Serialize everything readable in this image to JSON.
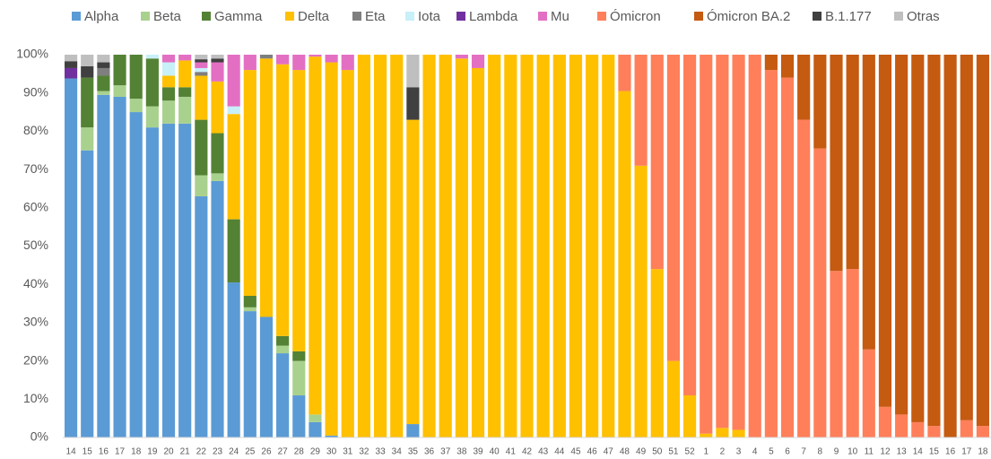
{
  "chart_data": {
    "type": "stacked_bar",
    "categories": [
      "14",
      "15",
      "16",
      "17",
      "18",
      "19",
      "20",
      "21",
      "22",
      "23",
      "24",
      "25",
      "26",
      "27",
      "28",
      "29",
      "30",
      "31",
      "32",
      "33",
      "34",
      "35",
      "36",
      "37",
      "38",
      "39",
      "40",
      "41",
      "42",
      "43",
      "44",
      "45",
      "46",
      "47",
      "48",
      "49",
      "50",
      "51",
      "52",
      "1",
      "2",
      "3",
      "4",
      "5",
      "6",
      "7",
      "8",
      "9",
      "10",
      "11",
      "12",
      "13",
      "14",
      "15",
      "16",
      "17",
      "18"
    ],
    "series": [
      {
        "name": "Alpha",
        "color": "#5b9bd5",
        "values": [
          93.8,
          75,
          89.5,
          89,
          85,
          81,
          82,
          82,
          63,
          67,
          40.5,
          33,
          31.5,
          22,
          11,
          4,
          0.5,
          0,
          0,
          0,
          0,
          3.5,
          0,
          0,
          0,
          0,
          0,
          0,
          0,
          0,
          0,
          0,
          0,
          0,
          0,
          0,
          0,
          0,
          0,
          0,
          0,
          0,
          0,
          0,
          0,
          0,
          0,
          0,
          0,
          0,
          0,
          0,
          0,
          0,
          0,
          0,
          0
        ]
      },
      {
        "name": "Beta",
        "color": "#a9d18e",
        "values": [
          0,
          6,
          1,
          3,
          3.5,
          5.5,
          6,
          7,
          5.5,
          2,
          0,
          1,
          0,
          2,
          9,
          2,
          0,
          0,
          0,
          0,
          0,
          0,
          0,
          0,
          0,
          0,
          0,
          0,
          0,
          0,
          0,
          0,
          0,
          0,
          0,
          0,
          0,
          0,
          0,
          0,
          0,
          0,
          0,
          0,
          0,
          0,
          0,
          0,
          0,
          0,
          0,
          0,
          0,
          0,
          0,
          0,
          0
        ]
      },
      {
        "name": "Gamma",
        "color": "#548235",
        "values": [
          0,
          13,
          4,
          8,
          11.5,
          12.5,
          3.5,
          2.5,
          14.5,
          10.5,
          16.5,
          3,
          0,
          2.5,
          2.5,
          0,
          0,
          0,
          0,
          0,
          0,
          0,
          0,
          0,
          0,
          0,
          0,
          0,
          0,
          0,
          0,
          0,
          0,
          0,
          0,
          0,
          0,
          0,
          0,
          0,
          0,
          0,
          0,
          0,
          0,
          0,
          0,
          0,
          0,
          0,
          0,
          0,
          0,
          0,
          0,
          0,
          0
        ]
      },
      {
        "name": "Delta",
        "color": "#ffc000",
        "values": [
          0,
          0,
          0,
          0,
          0,
          0,
          3,
          7,
          11.5,
          13.5,
          27.5,
          59,
          67.5,
          71,
          73.5,
          93.5,
          97.5,
          96,
          100,
          100,
          100,
          79.5,
          100,
          100,
          99,
          96.5,
          100,
          100,
          100,
          100,
          100,
          100,
          100,
          100,
          90.5,
          71,
          44,
          20,
          11,
          1,
          2.5,
          2,
          0,
          0,
          0,
          0,
          0,
          0,
          0,
          0,
          0,
          0,
          0,
          0,
          0,
          0,
          0
        ]
      },
      {
        "name": "Eta",
        "color": "#7f7f7f",
        "values": [
          0,
          0,
          2,
          0,
          0,
          0,
          0,
          0,
          1,
          0,
          0,
          0,
          1,
          0,
          0,
          0,
          0,
          0,
          0,
          0,
          0,
          0,
          0,
          0,
          0,
          0,
          0,
          0,
          0,
          0,
          0,
          0,
          0,
          0,
          0,
          0,
          0,
          0,
          0,
          0,
          0,
          0,
          0,
          0,
          0,
          0,
          0,
          0,
          0,
          0,
          0,
          0,
          0,
          0,
          0,
          0,
          0
        ]
      },
      {
        "name": "Iota",
        "color": "#c8f0f8",
        "values": [
          0,
          0,
          0,
          0,
          0,
          1,
          3.5,
          0,
          1,
          0,
          2,
          0,
          0,
          0,
          0,
          0,
          0,
          0,
          0,
          0,
          0,
          0,
          0,
          0,
          0,
          0,
          0,
          0,
          0,
          0,
          0,
          0,
          0,
          0,
          0,
          0,
          0,
          0,
          0,
          0,
          0,
          0,
          0,
          0,
          0,
          0,
          0,
          0,
          0,
          0,
          0,
          0,
          0,
          0,
          0,
          0,
          0
        ]
      },
      {
        "name": "Lambda",
        "color": "#7030a0",
        "values": [
          2.7,
          0,
          0,
          0,
          0,
          0,
          0,
          0,
          0,
          0,
          0,
          0,
          0,
          0,
          0,
          0,
          0,
          0,
          0,
          0,
          0,
          0,
          0,
          0,
          0,
          0,
          0,
          0,
          0,
          0,
          0,
          0,
          0,
          0,
          0,
          0,
          0,
          0,
          0,
          0,
          0,
          0,
          0,
          0,
          0,
          0,
          0,
          0,
          0,
          0,
          0,
          0,
          0,
          0,
          0,
          0,
          0
        ]
      },
      {
        "name": "Mu",
        "color": "#e36fc3",
        "values": [
          0,
          0,
          0,
          0,
          0,
          0,
          2,
          1.5,
          1.5,
          5,
          13.5,
          4,
          0,
          2.5,
          4,
          0.5,
          2,
          4,
          0,
          0,
          0,
          0,
          0,
          0,
          1,
          3.5,
          0,
          0,
          0,
          0,
          0,
          0,
          0,
          0,
          0,
          0,
          0,
          0,
          0,
          0,
          0,
          0,
          0,
          0,
          0,
          0,
          0,
          0,
          0,
          0,
          0,
          0,
          0,
          0,
          0,
          0,
          0
        ]
      },
      {
        "name": "Ómicron",
        "color": "#ff7f5a",
        "values": [
          0,
          0,
          0,
          0,
          0,
          0,
          0,
          0,
          0,
          0,
          0,
          0,
          0,
          0,
          0,
          0,
          0,
          0,
          0,
          0,
          0,
          0,
          0,
          0,
          0,
          0,
          0,
          0,
          0,
          0,
          0,
          0,
          0,
          0,
          9.5,
          29,
          56,
          80,
          89,
          99,
          97.5,
          98,
          100,
          96,
          94,
          83,
          75.5,
          43.5,
          44,
          23,
          8,
          6,
          4,
          3,
          0,
          4.5,
          3
        ]
      },
      {
        "name": "Ómicron BA.2",
        "color": "#c55a11",
        "values": [
          0,
          0,
          0,
          0,
          0,
          0,
          0,
          0,
          0,
          0,
          0,
          0,
          0,
          0,
          0,
          0,
          0,
          0,
          0,
          0,
          0,
          0,
          0,
          0,
          0,
          0,
          0,
          0,
          0,
          0,
          0,
          0,
          0,
          0,
          0,
          0,
          0,
          0,
          0,
          0,
          0,
          0,
          0,
          4,
          6,
          17,
          24.5,
          56.5,
          56,
          77,
          92,
          94,
          96,
          97,
          100,
          95.5,
          97
        ]
      },
      {
        "name": "B.1.177",
        "color": "#404040",
        "values": [
          1.8,
          3,
          1.5,
          0,
          0,
          0,
          0,
          0,
          0.8,
          1,
          0,
          0,
          0,
          0,
          0,
          0,
          0,
          0,
          0,
          0,
          0,
          8.5,
          0,
          0,
          0,
          0,
          0,
          0,
          0,
          0,
          0,
          0,
          0,
          0,
          0,
          0,
          0,
          0,
          0,
          0,
          0,
          0,
          0,
          0,
          0,
          0,
          0,
          0,
          0,
          0,
          0,
          0,
          0,
          0,
          0,
          0,
          0
        ]
      },
      {
        "name": "Otras",
        "color": "#bfbfbf",
        "values": [
          1.7,
          3,
          2,
          0,
          0,
          0,
          0,
          0,
          1.2,
          1,
          0,
          0,
          0,
          0,
          0,
          0,
          0,
          0,
          0,
          0,
          0,
          8.5,
          0,
          0,
          0,
          0,
          0,
          0,
          0,
          0,
          0,
          0,
          0,
          0,
          0,
          0,
          0,
          0,
          0,
          0,
          0,
          0,
          0,
          0,
          0,
          0,
          0,
          0,
          0,
          0,
          0,
          0,
          0,
          0,
          0,
          0,
          0
        ]
      }
    ],
    "ylim": [
      0,
      100
    ],
    "yticks": [
      {
        "value": 0,
        "label": "0%"
      },
      {
        "value": 10,
        "label": "10%"
      },
      {
        "value": 20,
        "label": "20%"
      },
      {
        "value": 30,
        "label": "30%"
      },
      {
        "value": 40,
        "label": "40%"
      },
      {
        "value": 50,
        "label": "50%"
      },
      {
        "value": 60,
        "label": "60%"
      },
      {
        "value": 70,
        "label": "70%"
      },
      {
        "value": 80,
        "label": "80%"
      },
      {
        "value": 90,
        "label": "90%"
      },
      {
        "value": 100,
        "label": "100%"
      }
    ],
    "grid": false,
    "legend": "top"
  }
}
